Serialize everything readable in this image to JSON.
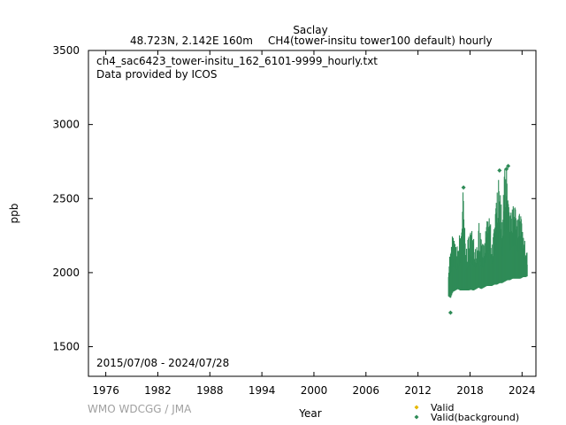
{
  "chart_data": {
    "type": "scatter",
    "title": "Saclay",
    "subtitle_left": "48.723N, 2.142E 160m",
    "subtitle_right": "CH4(tower-insitu tower100 default) hourly",
    "file_label": "ch4_sac6423_tower-insitu_162_6101-9999_hourly.txt",
    "provider_label": "Data provided by ICOS",
    "date_range_label": "2015/07/08 - 2024/07/28",
    "xlabel": "Year",
    "ylabel": "ppb",
    "xlim": [
      1974.0,
      2025.6
    ],
    "ylim": [
      1300,
      3500
    ],
    "x_ticks": [
      1976,
      1982,
      1988,
      1994,
      2000,
      2006,
      2012,
      2018,
      2024
    ],
    "y_ticks": [
      1500,
      2000,
      2500,
      3000,
      3500
    ],
    "grid": false,
    "legend_position": "bottom-right",
    "series": [
      {
        "name": "Valid",
        "color": "#e6b800",
        "values": []
      },
      {
        "name": "Valid(background)",
        "color": "#2e8b57",
        "envelope": [
          {
            "x": 2015.55,
            "min": 1840,
            "max": 2130
          },
          {
            "x": 2015.75,
            "min": 1830,
            "max": 2160
          },
          {
            "x": 2016.0,
            "min": 1870,
            "max": 2260
          },
          {
            "x": 2016.3,
            "min": 1880,
            "max": 2200
          },
          {
            "x": 2016.6,
            "min": 1890,
            "max": 2180
          },
          {
            "x": 2016.9,
            "min": 1880,
            "max": 2300
          },
          {
            "x": 2017.2,
            "min": 1880,
            "max": 2580
          },
          {
            "x": 2017.5,
            "min": 1880,
            "max": 2170
          },
          {
            "x": 2017.8,
            "min": 1880,
            "max": 2230
          },
          {
            "x": 2018.1,
            "min": 1885,
            "max": 2300
          },
          {
            "x": 2018.4,
            "min": 1880,
            "max": 2250
          },
          {
            "x": 2018.7,
            "min": 1890,
            "max": 2200
          },
          {
            "x": 2019.0,
            "min": 1900,
            "max": 2350
          },
          {
            "x": 2019.3,
            "min": 1890,
            "max": 2220
          },
          {
            "x": 2019.6,
            "min": 1900,
            "max": 2200
          },
          {
            "x": 2019.9,
            "min": 1910,
            "max": 2320
          },
          {
            "x": 2020.2,
            "min": 1910,
            "max": 2460
          },
          {
            "x": 2020.5,
            "min": 1910,
            "max": 2220
          },
          {
            "x": 2020.8,
            "min": 1920,
            "max": 2300
          },
          {
            "x": 2021.1,
            "min": 1920,
            "max": 2520
          },
          {
            "x": 2021.4,
            "min": 1930,
            "max": 2690
          },
          {
            "x": 2021.7,
            "min": 1930,
            "max": 2340
          },
          {
            "x": 2022.0,
            "min": 1940,
            "max": 2700
          },
          {
            "x": 2022.3,
            "min": 1950,
            "max": 2720
          },
          {
            "x": 2022.6,
            "min": 1950,
            "max": 2380
          },
          {
            "x": 2022.9,
            "min": 1960,
            "max": 2440
          },
          {
            "x": 2023.2,
            "min": 1960,
            "max": 2470
          },
          {
            "x": 2023.5,
            "min": 1960,
            "max": 2350
          },
          {
            "x": 2023.8,
            "min": 1960,
            "max": 2420
          },
          {
            "x": 2024.1,
            "min": 1970,
            "max": 2250
          },
          {
            "x": 2024.4,
            "min": 1970,
            "max": 2200
          },
          {
            "x": 2024.57,
            "min": 1975,
            "max": 2150
          }
        ],
        "outliers": [
          {
            "x": 2015.75,
            "y": 1730
          },
          {
            "x": 2017.25,
            "y": 2575
          },
          {
            "x": 2021.4,
            "y": 2690
          },
          {
            "x": 2022.2,
            "y": 2700
          },
          {
            "x": 2022.4,
            "y": 2720
          }
        ]
      }
    ]
  },
  "credit": "WMO WDCGG / JMA"
}
